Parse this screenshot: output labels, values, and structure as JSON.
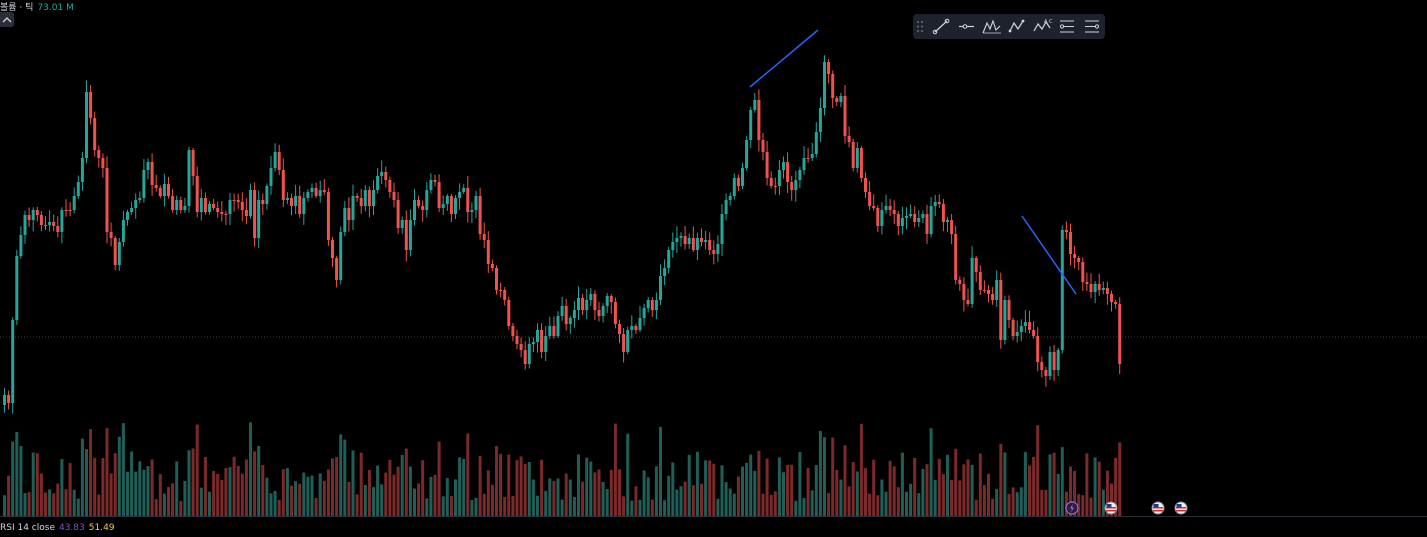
{
  "volume_legend": {
    "label": "볼륨 · 틱",
    "value": "73.01 M"
  },
  "rsi_legend": {
    "label": "RSI 14 close",
    "value1": "43.83",
    "value2": "51.49"
  },
  "toolbar": {
    "tools": [
      "trend-line-icon",
      "horizontal-ray-icon",
      "elliott-wave-icon",
      "abcd-pattern-icon",
      "xabcd-pattern-icon",
      "long-position-icon",
      "short-position-icon"
    ]
  },
  "colors": {
    "up": "#26a69a",
    "down": "#ef5350",
    "trendline": "#2962ff",
    "vol_up": "#1f5f58",
    "vol_down": "#7a2a2a"
  },
  "events": [
    "lightning-event-icon",
    "us-flag-event-icon",
    "us-flag-event-icon",
    "us-flag-event-icon"
  ],
  "chart_data": {
    "type": "candlestick",
    "series": [
      {
        "name": "",
        "close": [
          395,
          403,
          320,
          256,
          235,
          215,
          220,
          210,
          215,
          225,
          225,
          222,
          226,
          232,
          210,
          210,
          210,
          196,
          182,
          158,
          92,
          118,
          150,
          158,
          168,
          232,
          238,
          265,
          242,
          220,
          212,
          208,
          200,
          198,
          170,
          162,
          185,
          188,
          196,
          184,
          196,
          210,
          200,
          210,
          206,
          150,
          176,
          212,
          198,
          212,
          204,
          208,
          212,
          214,
          214,
          200,
          200,
          202,
          210,
          216,
          190,
          238,
          200,
          204,
          186,
          168,
          152,
          170,
          200,
          198,
          206,
          196,
          214,
          198,
          192,
          188,
          196,
          190,
          192,
          240,
          258,
          280,
          232,
          208,
          220,
          196,
          198,
          206,
          190,
          206,
          190,
          176,
          172,
          180,
          192,
          200,
          228,
          220,
          250,
          220,
          200,
          206,
          210,
          190,
          180,
          182,
          208,
          204,
          196,
          214,
          198,
          192,
          188,
          212,
          210,
          196,
          234,
          240,
          264,
          268,
          290,
          290,
          300,
          326,
          336,
          344,
          350,
          364,
          344,
          342,
          330,
          352,
          336,
          326,
          336,
          316,
          306,
          324,
          318,
          310,
          298,
          310,
          300,
          294,
          310,
          316,
          306,
          296,
          302,
          324,
          334,
          352,
          330,
          326,
          330,
          318,
          308,
          300,
          310,
          300,
          276,
          268,
          250,
          242,
          238,
          236,
          244,
          238,
          250,
          238,
          242,
          240,
          250,
          254,
          244,
          214,
          200,
          196,
          178,
          186,
          168,
          140,
          110,
          100,
          140,
          152,
          178,
          186,
          186,
          170,
          162,
          182,
          190,
          180,
          170,
          158,
          158,
          154,
          132,
          108,
          62,
          74,
          98,
          102,
          96,
          136,
          142,
          168,
          148,
          178,
          192,
          206,
          208,
          226,
          210,
          206,
          210,
          214,
          226,
          218,
          216,
          214,
          222,
          218,
          214,
          234,
          206,
          202,
          204,
          222,
          220,
          234,
          280,
          284,
          300,
          304,
          258,
          272,
          290,
          290,
          294,
          300,
          280,
          340,
          300,
          320,
          336,
          332,
          326,
          322,
          330,
          336,
          362,
          370,
          376,
          352,
          370,
          350,
          230,
          232,
          254,
          258,
          262,
          282,
          284,
          292,
          284,
          290,
          288,
          294,
          302,
          304,
          364
        ]
      }
    ]
  }
}
